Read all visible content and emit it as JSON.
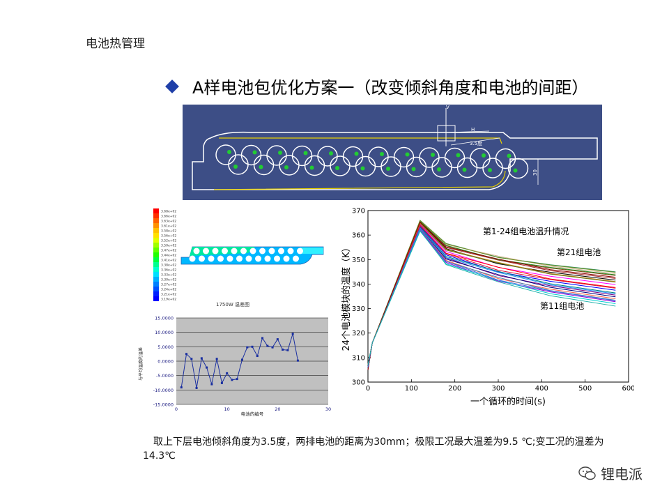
{
  "header": {
    "text": "电池热管理"
  },
  "title": {
    "text": "A样电池包优化方案一（改变倾斜角度和电池的间距）"
  },
  "cad_drawing": {
    "dim_angle": "3.5度",
    "dim_h": "H",
    "dim_v": "V",
    "dim_spacing": "30"
  },
  "contour_plot": {
    "legend_values": [
      "3.68e+02",
      "3.66e+02",
      "3.63e+02",
      "3.61e+02",
      "3.58e+02",
      "3.56e+02",
      "3.52e+02",
      "3.50e+02",
      "3.47e+02",
      "3.44e+02",
      "3.41e+02",
      "3.38e+02",
      "3.36e+02",
      "3.33e+02",
      "3.30e+02",
      "3.27e+02",
      "3.24e+02",
      "3.21e+02",
      "3.19e+02"
    ],
    "legend_colors": [
      "#ff0000",
      "#ff3000",
      "#ff6000",
      "#ff9000",
      "#ffc000",
      "#ffe000",
      "#e0ff00",
      "#a0ff00",
      "#60ff00",
      "#20ff00",
      "#00ff40",
      "#00ff90",
      "#00ffd0",
      "#00e0ff",
      "#00b0ff",
      "#0080ff",
      "#0050ff",
      "#0020ff",
      "#0000ff"
    ],
    "caption": "1750W 温差图"
  },
  "chart_data": [
    {
      "type": "line",
      "title": "",
      "xlabel": "电池的编号",
      "ylabel": "与平均温度的温差",
      "xlim": [
        0,
        30
      ],
      "ylim": [
        -15,
        15
      ],
      "x_ticks": [
        "0",
        "10",
        "20",
        "30"
      ],
      "y_ticks": [
        "15.0000",
        "10.0000",
        "5.0000",
        "0.0000",
        "-5.0000",
        "-10.0000",
        "-15.0000"
      ],
      "series": [
        {
          "x": [
            1,
            2,
            3,
            4,
            5,
            6,
            7,
            8,
            9,
            10,
            11,
            12,
            13,
            14,
            15,
            16,
            17,
            18,
            19,
            20,
            21,
            22,
            23,
            24
          ],
          "values": [
            -9.1,
            2.5,
            0.8,
            -9.3,
            1.0,
            -2.2,
            -8.0,
            0.8,
            -7.6,
            -4.2,
            -6.5,
            -6.2,
            0.5,
            4.8,
            5.0,
            1.8,
            8.0,
            5.3,
            4.8,
            7.6,
            4.0,
            3.8,
            9.5,
            0.2
          ]
        }
      ]
    },
    {
      "type": "line",
      "title": "",
      "xlabel": "一个循环的时间(s)",
      "ylabel": "24个电池模块的温度（K）",
      "xlim": [
        0,
        600
      ],
      "ylim": [
        300,
        370
      ],
      "x_ticks": [
        "0",
        "100",
        "200",
        "300",
        "400",
        "500",
        "600"
      ],
      "y_ticks": [
        "370",
        "360",
        "350",
        "340",
        "330",
        "320",
        "310",
        "300"
      ],
      "annotations": [
        "第1-24组电池温升情况",
        "第21组电池",
        "第11组电池"
      ],
      "series_peaks": [
        366,
        365.8,
        365.5,
        365.2,
        365,
        364.6,
        364.3,
        364,
        363.7,
        363.4,
        363.1,
        362.8,
        362.5,
        362.2,
        361.9,
        361.6,
        365.6,
        364.9,
        363.9,
        362.9,
        366,
        365.3,
        362.4,
        361.8
      ],
      "series_ends": [
        345,
        344.3,
        343.5,
        342.3,
        341.6,
        340.8,
        339.8,
        338.6,
        337.5,
        336.4,
        335.5,
        334.8,
        334,
        333.4,
        332.8,
        332,
        343.8,
        341,
        338.3,
        336,
        344.8,
        342.8,
        333.2,
        331
      ],
      "series_colors": [
        "#2e8b57",
        "#d2b48c",
        "#8b4513",
        "#a52a2a",
        "#000000",
        "#556b2f",
        "#ff00ff",
        "#ff0000",
        "#0000ff",
        "#008080",
        "#800080",
        "#000080",
        "#ff6347",
        "#4682b4",
        "#9400d3",
        "#00ced1",
        "#228b22",
        "#b8860b",
        "#dc143c",
        "#1e90ff",
        "#6b8e23",
        "#8b0000",
        "#4169e1",
        "#20b2aa"
      ]
    }
  ],
  "caption": {
    "line1": "取上下层电池倾斜角度为3.5度，两排电池的距离为30mm；极限工况最大温差为9.5 ℃;变工况的温差为",
    "line2": "14.3℃"
  },
  "watermark": {
    "text": "锂电派",
    "icon": "wechat-icon"
  }
}
